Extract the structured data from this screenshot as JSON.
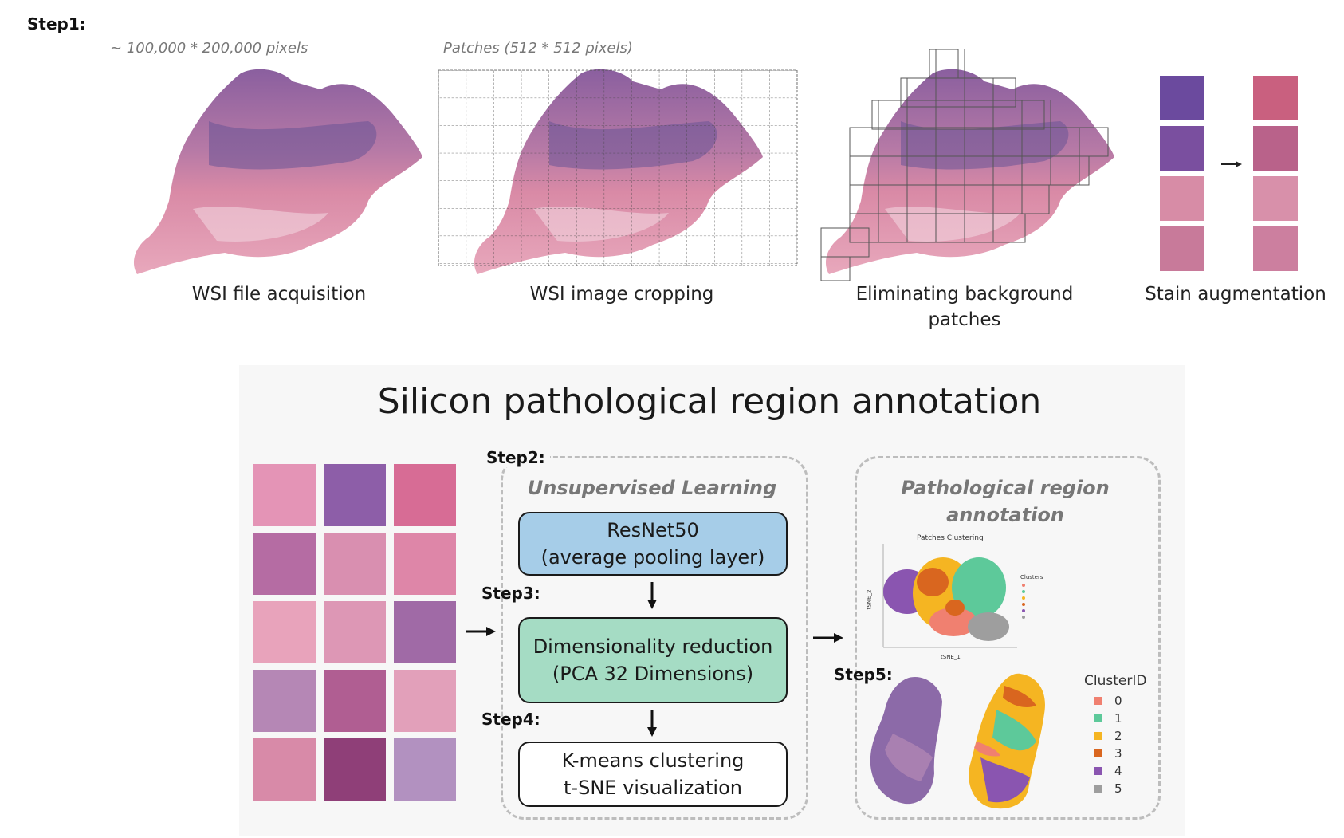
{
  "step1": {
    "label": "Step1:",
    "wsi_size_caption": "~ 100,000 * 200,000 pixels",
    "patch_size_caption": "Patches (512 * 512 pixels)",
    "captions": {
      "acquisition": "WSI file acquisition",
      "cropping": "WSI image cropping",
      "eliminating_line1": "Eliminating background",
      "eliminating_line2": "patches",
      "stain": "Stain augmentation"
    }
  },
  "main_title": "Silicon pathological region annotation",
  "steps": {
    "step2": "Step2:",
    "step3": "Step3:",
    "step4": "Step4:",
    "step5": "Step5:"
  },
  "unsupervised": {
    "title": "Unsupervised Learning",
    "resnet_line1": "ResNet50",
    "resnet_line2": "(average pooling layer)",
    "dim_line1": "Dimensionality reduction",
    "dim_line2": "(PCA 32 Dimensions)",
    "kmeans_line1": "K-means clustering",
    "kmeans_line2": "t-SNE visualization"
  },
  "annotation": {
    "title_line1": "Pathological region",
    "title_line2": "annotation",
    "scatter_title": "Patches Clustering",
    "scatter_xlabel": "tSNE_1",
    "scatter_ylabel": "tSNE_2",
    "scatter_legend_title": "Clusters",
    "legend_title": "ClusterID",
    "clusters": [
      {
        "id": "0",
        "color": "#f08070"
      },
      {
        "id": "1",
        "color": "#5dc99a"
      },
      {
        "id": "2",
        "color": "#f5b522"
      },
      {
        "id": "3",
        "color": "#d9661f"
      },
      {
        "id": "4",
        "color": "#8a55b0"
      },
      {
        "id": "5",
        "color": "#9e9e9e"
      }
    ]
  },
  "colors": {
    "resnet_fill": "#a6cde8",
    "dim_fill": "#a5dcc4",
    "kmeans_fill": "#ffffff",
    "tissue_pink": "#d98aa6",
    "tissue_purple": "#7a5a9e"
  }
}
